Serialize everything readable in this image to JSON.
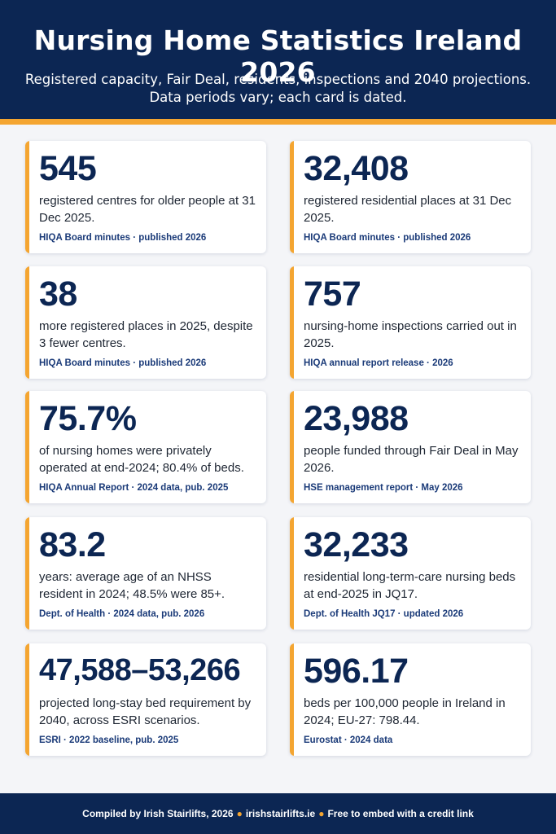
{
  "header": {
    "title": "Nursing Home Statistics Ireland 2026",
    "subtitle_line1": "Registered capacity, Fair Deal, residents, inspections and 2040 projections.",
    "subtitle_line2": "Data periods vary; each card is dated."
  },
  "colors": {
    "navy": "#0c2653",
    "accent": "#f4a531",
    "background": "#f4f5f8"
  },
  "cards": [
    {
      "stat": "545",
      "desc": "registered centres for older people at 31 Dec 2025.",
      "source": "HIQA Board minutes · published 2026"
    },
    {
      "stat": "32,408",
      "desc": "registered residential places at 31 Dec 2025.",
      "source": "HIQA Board minutes · published 2026"
    },
    {
      "stat": "38",
      "desc": "more registered places in 2025, despite 3 fewer centres.",
      "source": "HIQA Board minutes · published 2026"
    },
    {
      "stat": "757",
      "desc": "nursing-home inspections carried out in 2025.",
      "source": "HIQA annual report release · 2026"
    },
    {
      "stat": "75.7%",
      "desc": "of nursing homes were privately operated at end-2024; 80.4% of beds.",
      "source": "HIQA Annual Report · 2024 data, pub. 2025"
    },
    {
      "stat": "23,988",
      "desc": "people funded through Fair Deal in May 2026.",
      "source": "HSE management report · May 2026"
    },
    {
      "stat": "83.2",
      "desc": "years: average age of an NHSS resident in 2024; 48.5% were 85+.",
      "source": "Dept. of Health · 2024 data, pub. 2026"
    },
    {
      "stat": "32,233",
      "desc": "residential long-term-care nursing beds at end-2025 in JQ17.",
      "source": "Dept. of Health JQ17 · updated 2026"
    },
    {
      "stat": "47,588–53,266",
      "desc": "projected long-stay bed requirement by 2040, across ESRI scenarios.",
      "source": "ESRI · 2022 baseline, pub. 2025"
    },
    {
      "stat": "596.17",
      "desc": "beds per 100,000 people in Ireland in 2024; EU-27: 798.44.",
      "source": "Eurostat · 2024 data"
    }
  ],
  "footer": {
    "credit": "Compiled by Irish Stairlifts, 2026",
    "site": "irishstairlifts.ie",
    "license": "Free to embed with a credit link"
  }
}
